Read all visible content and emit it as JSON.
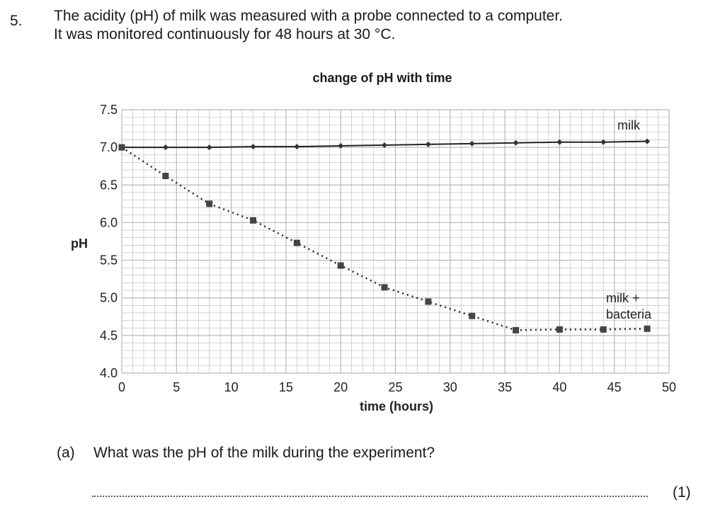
{
  "question": {
    "number": "5.",
    "lines": [
      "The acidity (pH) of milk was measured with a probe connected to a computer.",
      "It was monitored continuously for 48 hours at 30 °C."
    ]
  },
  "chart_data": {
    "type": "line",
    "title": "change of pH with time",
    "xlabel": "time (hours)",
    "ylabel": "pH",
    "xlim": [
      0,
      50
    ],
    "ylim": [
      4.0,
      7.5
    ],
    "xticks": [
      "0",
      "5",
      "10",
      "15",
      "20",
      "25",
      "30",
      "35",
      "40",
      "45",
      "50"
    ],
    "yticks": [
      "4.0",
      "4.5",
      "5.0",
      "5.5",
      "6.0",
      "6.5",
      "7.0",
      "7.5"
    ],
    "grid": true,
    "x": [
      0,
      4,
      8,
      12,
      16,
      20,
      24,
      28,
      32,
      36,
      40,
      44,
      48
    ],
    "series": [
      {
        "name": "milk",
        "marker": "diamond",
        "line": "solid",
        "values": [
          7.0,
          7.0,
          7.0,
          7.01,
          7.01,
          7.02,
          7.03,
          7.04,
          7.05,
          7.06,
          7.07,
          7.07,
          7.08
        ]
      },
      {
        "name": "milk + bacteria",
        "marker": "square",
        "line": "dotted",
        "values": [
          7.0,
          6.62,
          6.25,
          6.03,
          5.73,
          5.43,
          5.14,
          4.95,
          4.76,
          4.57,
          4.58,
          4.58,
          4.59
        ]
      }
    ],
    "colors": {
      "line": "#222222",
      "grid": "#b8b8b8"
    }
  },
  "part_a": {
    "label": "(a)",
    "text": "What was the pH of the milk during the experiment?",
    "marks": "(1)"
  }
}
